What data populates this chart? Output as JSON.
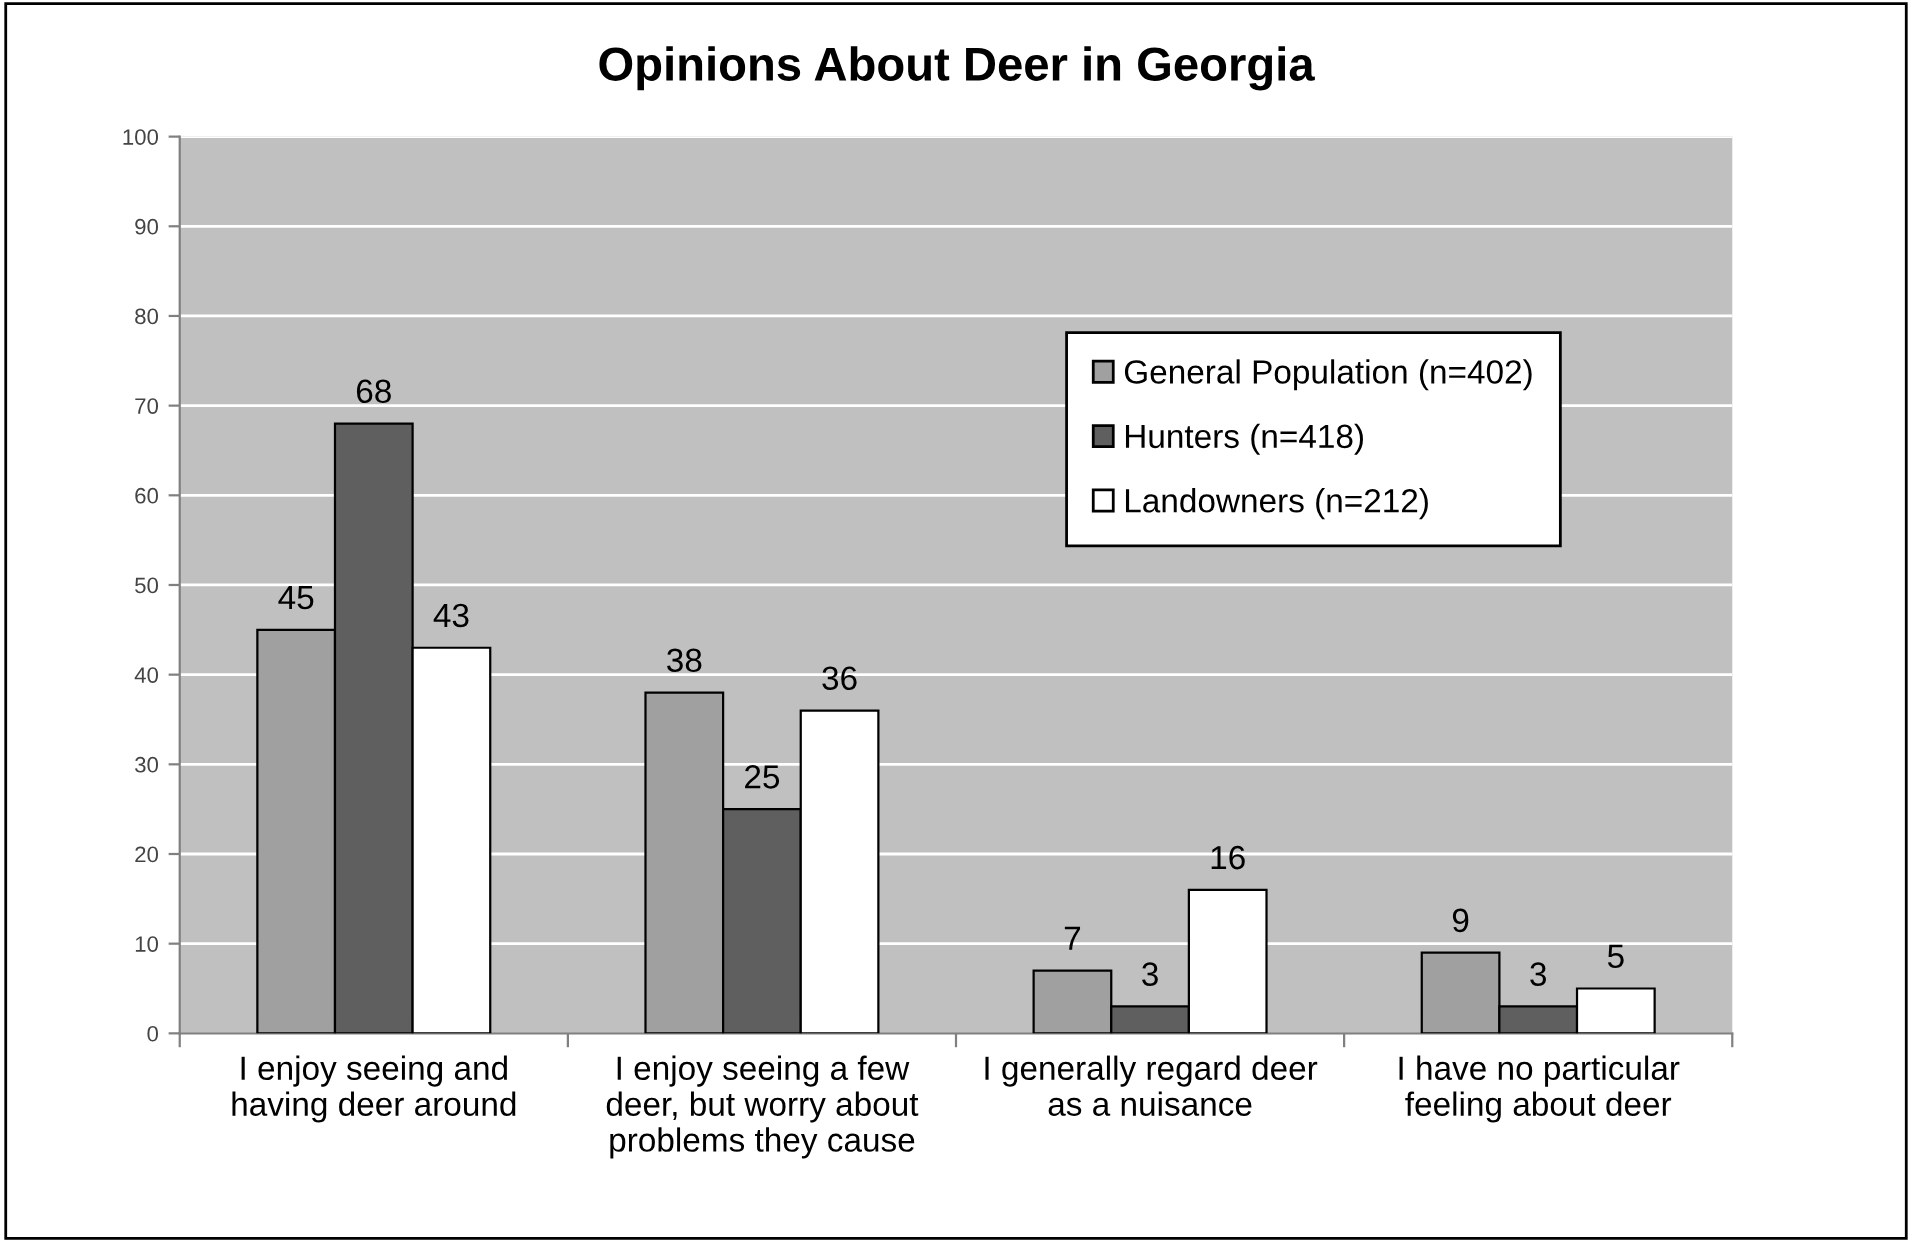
{
  "chart_data": {
    "type": "bar",
    "title": "Opinions About Deer in Georgia",
    "categories": [
      "I enjoy seeing and\nhaving deer around",
      "I enjoy seeing a few\ndeer, but worry about\nproblems they cause",
      "I generally regard deer\nas a nuisance",
      "I have no particular\nfeeling about deer"
    ],
    "series": [
      {
        "name": "General Population (n=402)",
        "color": "#a0a0a0",
        "values": [
          45,
          38,
          7,
          9
        ]
      },
      {
        "name": "Hunters (n=418)",
        "color": "#5f5f5f",
        "values": [
          68,
          25,
          3,
          3
        ]
      },
      {
        "name": "Landowners (n=212)",
        "color": "#ffffff",
        "values": [
          43,
          36,
          16,
          5
        ]
      }
    ],
    "ylim": [
      0,
      100
    ],
    "yticks": [
      0,
      10,
      20,
      30,
      40,
      50,
      60,
      70,
      80,
      90,
      100
    ],
    "grid": "y",
    "legend": "top right",
    "data_labels": true
  }
}
